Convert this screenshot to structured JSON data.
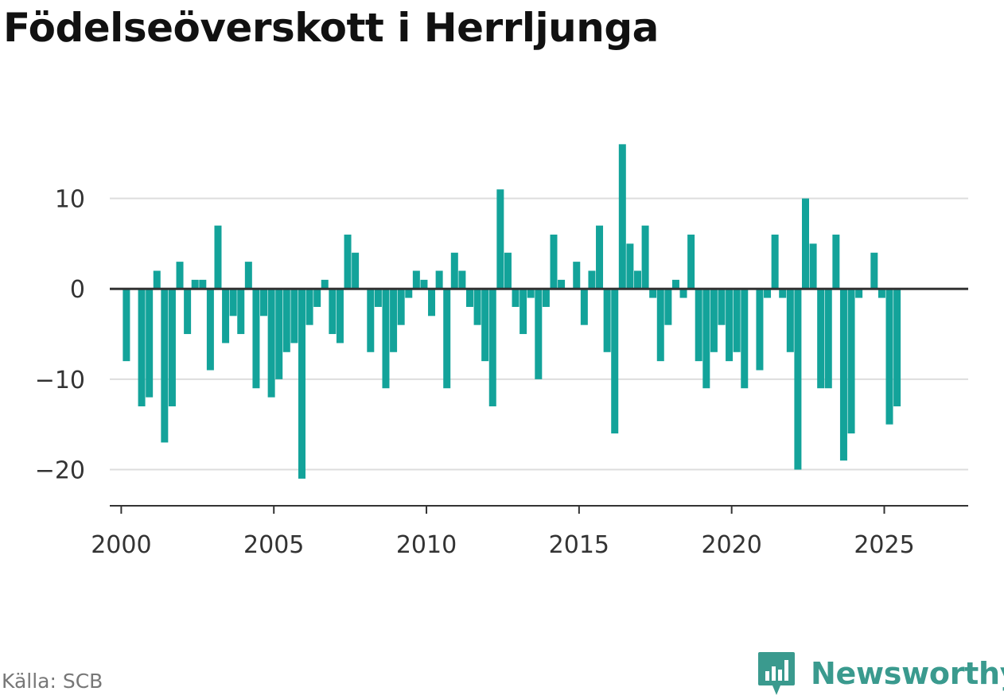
{
  "title": "Födelseöverskott i Herrljunga",
  "source": "Källa: SCB",
  "brand": {
    "name": "Newsworthy",
    "icon": "newsworthy-logo-icon",
    "color": "#3a9a8e"
  },
  "colors": {
    "bar": "#13a39a",
    "grid": "#dddddd",
    "zero": "#333333",
    "axis": "#333333"
  },
  "chart_data": {
    "type": "bar",
    "title": "Födelseöverskott i Herrljunga",
    "xlabel": "",
    "ylabel": "",
    "ylim": [
      -24,
      17
    ],
    "xlim": [
      1999.625,
      2027.75
    ],
    "grid": true,
    "legend": "none",
    "yticks": [
      10,
      0,
      -10,
      -20
    ],
    "ytick_labels": [
      "10",
      "0",
      "−10",
      "−20"
    ],
    "xticks": [
      2000,
      2005,
      2010,
      2015,
      2020,
      2025
    ],
    "xtick_labels": [
      "2000",
      "2005",
      "2010",
      "2015",
      "2020",
      "2025"
    ],
    "categories": [
      "2000 Q1",
      "2000 Q2",
      "2000 Q3",
      "2000 Q4",
      "2001 Q1",
      "2001 Q2",
      "2001 Q3",
      "2001 Q4",
      "2002 Q1",
      "2002 Q2",
      "2002 Q3",
      "2002 Q4",
      "2003 Q1",
      "2003 Q2",
      "2003 Q3",
      "2003 Q4",
      "2004 Q1",
      "2004 Q2",
      "2004 Q3",
      "2004 Q4",
      "2005 Q1",
      "2005 Q2",
      "2005 Q3",
      "2005 Q4",
      "2006 Q1",
      "2006 Q2",
      "2006 Q3",
      "2006 Q4",
      "2007 Q1",
      "2007 Q2",
      "2007 Q3",
      "2007 Q4",
      "2008 Q1",
      "2008 Q2",
      "2008 Q3",
      "2008 Q4",
      "2009 Q1",
      "2009 Q2",
      "2009 Q3",
      "2009 Q4",
      "2010 Q1",
      "2010 Q2",
      "2010 Q3",
      "2010 Q4",
      "2011 Q1",
      "2011 Q2",
      "2011 Q3",
      "2011 Q4",
      "2012 Q1",
      "2012 Q2",
      "2012 Q3",
      "2012 Q4",
      "2013 Q1",
      "2013 Q2",
      "2013 Q3",
      "2013 Q4",
      "2014 Q1",
      "2014 Q2",
      "2014 Q3",
      "2014 Q4",
      "2015 Q1",
      "2015 Q2",
      "2015 Q3",
      "2015 Q4",
      "2016 Q1",
      "2016 Q2",
      "2016 Q3",
      "2016 Q4",
      "2017 Q1",
      "2017 Q2",
      "2017 Q3",
      "2017 Q4",
      "2018 Q1",
      "2018 Q2",
      "2018 Q3",
      "2018 Q4",
      "2019 Q1",
      "2019 Q2",
      "2019 Q3",
      "2019 Q4",
      "2020 Q1",
      "2020 Q2",
      "2020 Q3",
      "2020 Q4",
      "2021 Q1",
      "2021 Q2",
      "2021 Q3",
      "2021 Q4",
      "2022 Q1",
      "2022 Q2",
      "2022 Q3",
      "2022 Q4",
      "2023 Q1",
      "2023 Q2",
      "2023 Q3",
      "2023 Q4",
      "2024 Q1",
      "2024 Q2",
      "2024 Q3",
      "2024 Q4",
      "2025 Q1",
      "2025 Q2"
    ],
    "values": [
      -8,
      0,
      -13,
      -12,
      2,
      -17,
      -13,
      3,
      -5,
      1,
      1,
      -9,
      7,
      -6,
      -3,
      -5,
      3,
      -11,
      -3,
      -12,
      -10,
      -7,
      -6,
      -21,
      -4,
      -2,
      1,
      -5,
      -6,
      6,
      4,
      0,
      -7,
      -2,
      -11,
      -7,
      -4,
      -1,
      2,
      1,
      -3,
      2,
      -11,
      4,
      2,
      -2,
      -4,
      -8,
      -13,
      11,
      4,
      -2,
      -5,
      -1,
      -10,
      -2,
      6,
      1,
      0,
      3,
      -4,
      2,
      7,
      -7,
      -16,
      16,
      5,
      2,
      7,
      -1,
      -8,
      -4,
      1,
      -1,
      6,
      -8,
      -11,
      -7,
      -4,
      -8,
      -7,
      -11,
      0,
      -9,
      -1,
      6,
      -1,
      -7,
      -20,
      10,
      5,
      -11,
      -11,
      6,
      -19,
      -16,
      -1,
      0,
      4,
      -1,
      -15,
      -13
    ]
  }
}
